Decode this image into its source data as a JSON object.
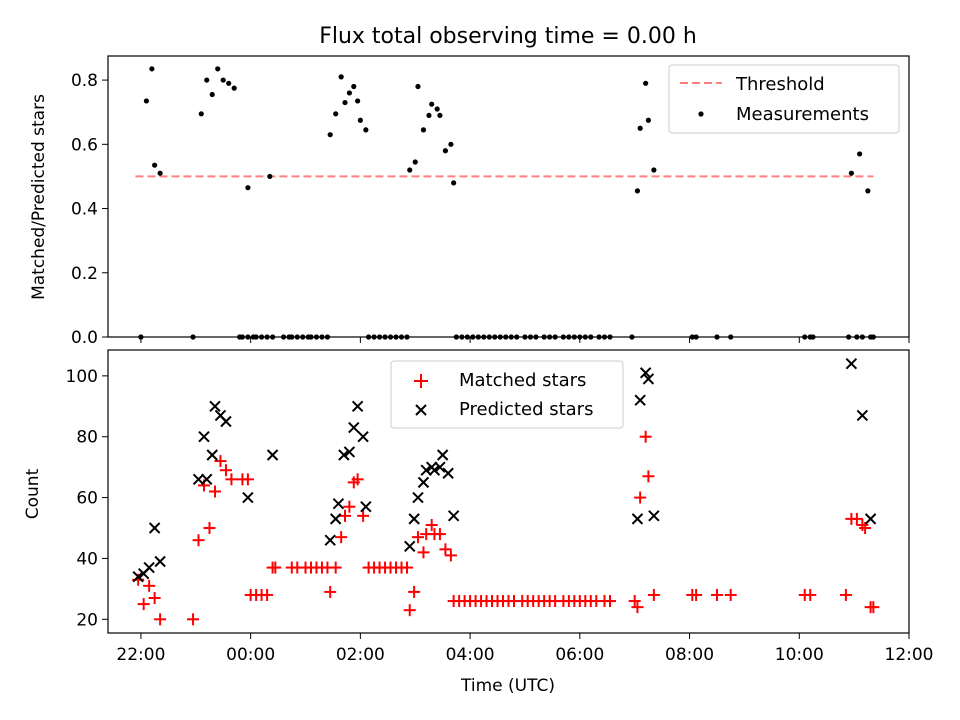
{
  "chart_data": [
    {
      "type": "scatter",
      "title": "Flux total observing time = 0.00 h",
      "xlabel": "",
      "ylabel": "Matched/Predicted stars",
      "xlim": [
        -2.6,
        12.0
      ],
      "ylim": [
        0,
        0.875
      ],
      "yticks": [
        0,
        0.2,
        0.4,
        0.6,
        0.8
      ],
      "ytick_labels": [
        "0.0",
        "0.2",
        "0.4",
        "0.6",
        "0.8"
      ],
      "legend_position": "top-right",
      "threshold": {
        "name": "Threshold",
        "value": 0.5,
        "x_range": [
          -2.1,
          11.35
        ],
        "color": "#ff7f7f"
      },
      "series": [
        {
          "name": "Measurements",
          "color": "#000000",
          "points": [
            [
              -2.0,
              0
            ],
            [
              -1.9,
              0.735
            ],
            [
              -1.8,
              0.835
            ],
            [
              -1.75,
              0.535
            ],
            [
              -1.65,
              0.51
            ],
            [
              -1.05,
              0
            ],
            [
              -0.9,
              0.695
            ],
            [
              -0.8,
              0.8
            ],
            [
              -0.7,
              0.755
            ],
            [
              -0.6,
              0.835
            ],
            [
              -0.5,
              0.8
            ],
            [
              -0.4,
              0.79
            ],
            [
              -0.3,
              0.775
            ],
            [
              -0.2,
              0
            ],
            [
              -0.15,
              0
            ],
            [
              -0.05,
              0
            ],
            [
              -0.05,
              0.465
            ],
            [
              0.05,
              0
            ],
            [
              0.1,
              0
            ],
            [
              0.2,
              0
            ],
            [
              0.3,
              0
            ],
            [
              0.35,
              0.5
            ],
            [
              0.4,
              0
            ],
            [
              0.6,
              0
            ],
            [
              0.7,
              0
            ],
            [
              0.75,
              0
            ],
            [
              0.85,
              0
            ],
            [
              0.95,
              0
            ],
            [
              1.05,
              0
            ],
            [
              1.1,
              0
            ],
            [
              1.2,
              0
            ],
            [
              1.3,
              0
            ],
            [
              1.4,
              0
            ],
            [
              1.45,
              0.63
            ],
            [
              1.55,
              0.695
            ],
            [
              1.65,
              0.81
            ],
            [
              1.72,
              0.73
            ],
            [
              1.8,
              0.76
            ],
            [
              1.88,
              0.78
            ],
            [
              1.95,
              0.735
            ],
            [
              2.0,
              0.675
            ],
            [
              2.1,
              0.645
            ],
            [
              2.15,
              0
            ],
            [
              2.25,
              0
            ],
            [
              2.35,
              0
            ],
            [
              2.45,
              0
            ],
            [
              2.55,
              0
            ],
            [
              2.65,
              0
            ],
            [
              2.75,
              0
            ],
            [
              2.85,
              0
            ],
            [
              2.9,
              0.52
            ],
            [
              3.0,
              0.545
            ],
            [
              3.05,
              0.78
            ],
            [
              3.15,
              0.645
            ],
            [
              3.25,
              0.69
            ],
            [
              3.3,
              0.725
            ],
            [
              3.4,
              0.71
            ],
            [
              3.45,
              0.69
            ],
            [
              3.55,
              0.58
            ],
            [
              3.65,
              0.6
            ],
            [
              3.7,
              0.48
            ],
            [
              3.75,
              0
            ],
            [
              3.85,
              0
            ],
            [
              3.95,
              0
            ],
            [
              4.05,
              0
            ],
            [
              4.15,
              0
            ],
            [
              4.25,
              0
            ],
            [
              4.35,
              0
            ],
            [
              4.45,
              0
            ],
            [
              4.55,
              0
            ],
            [
              4.65,
              0
            ],
            [
              4.75,
              0
            ],
            [
              4.85,
              0
            ],
            [
              5.0,
              0
            ],
            [
              5.1,
              0
            ],
            [
              5.2,
              0
            ],
            [
              5.35,
              0
            ],
            [
              5.45,
              0
            ],
            [
              5.55,
              0
            ],
            [
              5.7,
              0
            ],
            [
              5.8,
              0
            ],
            [
              5.9,
              0
            ],
            [
              6.0,
              0
            ],
            [
              6.1,
              0
            ],
            [
              6.2,
              0
            ],
            [
              6.35,
              0
            ],
            [
              6.45,
              0
            ],
            [
              6.55,
              0
            ],
            [
              6.95,
              0
            ],
            [
              7.05,
              0.455
            ],
            [
              7.1,
              0.65
            ],
            [
              7.2,
              0.79
            ],
            [
              7.25,
              0.675
            ],
            [
              7.35,
              0.52
            ],
            [
              8.05,
              0
            ],
            [
              8.12,
              0
            ],
            [
              8.5,
              0
            ],
            [
              8.75,
              0
            ],
            [
              10.1,
              0
            ],
            [
              10.2,
              0
            ],
            [
              10.25,
              0
            ],
            [
              10.9,
              0
            ],
            [
              10.95,
              0.51
            ],
            [
              11.05,
              0
            ],
            [
              11.15,
              0
            ],
            [
              11.1,
              0.57
            ],
            [
              11.25,
              0.455
            ],
            [
              11.3,
              0
            ],
            [
              11.35,
              0
            ]
          ]
        }
      ]
    },
    {
      "type": "scatter",
      "title": "",
      "xlabel": "Time (UTC)",
      "ylabel": "Count",
      "xlim": [
        -2.6,
        12.0
      ],
      "ylim": [
        15.5,
        108.5
      ],
      "xticks": [
        -2,
        0,
        2,
        4,
        6,
        8,
        10,
        12
      ],
      "xtick_labels": [
        "22:00",
        "00:00",
        "02:00",
        "04:00",
        "06:00",
        "08:00",
        "10:00",
        "12:00"
      ],
      "yticks": [
        20,
        40,
        60,
        80,
        100
      ],
      "ytick_labels": [
        "20",
        "40",
        "60",
        "80",
        "100"
      ],
      "legend_position": "top-center",
      "series": [
        {
          "name": "Matched stars",
          "color": "#ff0000",
          "marker": "+",
          "points": [
            [
              -2.05,
              33
            ],
            [
              -1.95,
              25
            ],
            [
              -1.85,
              31
            ],
            [
              -1.75,
              27
            ],
            [
              -1.65,
              20
            ],
            [
              -1.05,
              20
            ],
            [
              -0.95,
              46
            ],
            [
              -0.85,
              64
            ],
            [
              -0.75,
              50
            ],
            [
              -0.65,
              62
            ],
            [
              -0.55,
              72
            ],
            [
              -0.45,
              69
            ],
            [
              -0.35,
              66
            ],
            [
              -0.15,
              66
            ],
            [
              -0.05,
              66
            ],
            [
              0.0,
              28
            ],
            [
              0.1,
              28
            ],
            [
              0.2,
              28
            ],
            [
              0.3,
              28
            ],
            [
              0.4,
              37
            ],
            [
              0.45,
              37
            ],
            [
              0.75,
              37
            ],
            [
              0.85,
              37
            ],
            [
              1.0,
              37
            ],
            [
              1.1,
              37
            ],
            [
              1.2,
              37
            ],
            [
              1.3,
              37
            ],
            [
              1.4,
              37
            ],
            [
              1.45,
              29
            ],
            [
              1.55,
              37
            ],
            [
              1.65,
              47
            ],
            [
              1.72,
              54
            ],
            [
              1.8,
              57
            ],
            [
              1.88,
              65
            ],
            [
              1.95,
              66
            ],
            [
              2.05,
              54
            ],
            [
              2.15,
              37
            ],
            [
              2.25,
              37
            ],
            [
              2.35,
              37
            ],
            [
              2.45,
              37
            ],
            [
              2.55,
              37
            ],
            [
              2.65,
              37
            ],
            [
              2.75,
              37
            ],
            [
              2.85,
              37
            ],
            [
              2.9,
              23
            ],
            [
              2.98,
              29
            ],
            [
              3.05,
              47
            ],
            [
              3.15,
              42
            ],
            [
              3.2,
              48
            ],
            [
              3.3,
              51
            ],
            [
              3.35,
              48
            ],
            [
              3.45,
              48
            ],
            [
              3.55,
              43
            ],
            [
              3.65,
              41
            ],
            [
              3.7,
              26
            ],
            [
              3.8,
              26
            ],
            [
              3.9,
              26
            ],
            [
              4.0,
              26
            ],
            [
              4.1,
              26
            ],
            [
              4.2,
              26
            ],
            [
              4.3,
              26
            ],
            [
              4.4,
              26
            ],
            [
              4.5,
              26
            ],
            [
              4.6,
              26
            ],
            [
              4.7,
              26
            ],
            [
              4.8,
              26
            ],
            [
              4.95,
              26
            ],
            [
              5.05,
              26
            ],
            [
              5.15,
              26
            ],
            [
              5.25,
              26
            ],
            [
              5.35,
              26
            ],
            [
              5.45,
              26
            ],
            [
              5.55,
              26
            ],
            [
              5.7,
              26
            ],
            [
              5.8,
              26
            ],
            [
              5.9,
              26
            ],
            [
              6.0,
              26
            ],
            [
              6.1,
              26
            ],
            [
              6.2,
              26
            ],
            [
              6.3,
              26
            ],
            [
              6.45,
              26
            ],
            [
              6.55,
              26
            ],
            [
              7.0,
              26
            ],
            [
              7.05,
              24
            ],
            [
              7.1,
              60
            ],
            [
              7.2,
              80
            ],
            [
              7.25,
              67
            ],
            [
              7.35,
              28
            ],
            [
              8.05,
              28
            ],
            [
              8.12,
              28
            ],
            [
              8.5,
              28
            ],
            [
              8.75,
              28
            ],
            [
              10.1,
              28
            ],
            [
              10.2,
              28
            ],
            [
              10.85,
              28
            ],
            [
              10.95,
              53
            ],
            [
              11.05,
              53
            ],
            [
              11.15,
              51
            ],
            [
              11.2,
              50
            ],
            [
              11.3,
              24
            ],
            [
              11.35,
              24
            ]
          ]
        },
        {
          "name": "Predicted stars",
          "color": "#000000",
          "marker": "x",
          "points": [
            [
              -2.05,
              34
            ],
            [
              -1.95,
              35
            ],
            [
              -1.85,
              37
            ],
            [
              -1.75,
              50
            ],
            [
              -1.65,
              39
            ],
            [
              -0.95,
              66
            ],
            [
              -0.85,
              80
            ],
            [
              -0.8,
              66
            ],
            [
              -0.7,
              74
            ],
            [
              -0.65,
              90
            ],
            [
              -0.55,
              87
            ],
            [
              -0.45,
              85
            ],
            [
              -0.05,
              60
            ],
            [
              0.4,
              74
            ],
            [
              1.45,
              46
            ],
            [
              1.55,
              53
            ],
            [
              1.6,
              58
            ],
            [
              1.7,
              74
            ],
            [
              1.8,
              75
            ],
            [
              1.88,
              83
            ],
            [
              1.95,
              90
            ],
            [
              2.05,
              80
            ],
            [
              2.1,
              57
            ],
            [
              2.9,
              44
            ],
            [
              2.98,
              53
            ],
            [
              3.05,
              60
            ],
            [
              3.15,
              65
            ],
            [
              3.2,
              69
            ],
            [
              3.3,
              70
            ],
            [
              3.35,
              69
            ],
            [
              3.45,
              70
            ],
            [
              3.5,
              74
            ],
            [
              3.6,
              68
            ],
            [
              3.7,
              54
            ],
            [
              7.05,
              53
            ],
            [
              7.1,
              92
            ],
            [
              7.2,
              101
            ],
            [
              7.25,
              99
            ],
            [
              7.35,
              54
            ],
            [
              10.95,
              104
            ],
            [
              11.15,
              87
            ],
            [
              11.3,
              53
            ]
          ]
        }
      ]
    }
  ]
}
